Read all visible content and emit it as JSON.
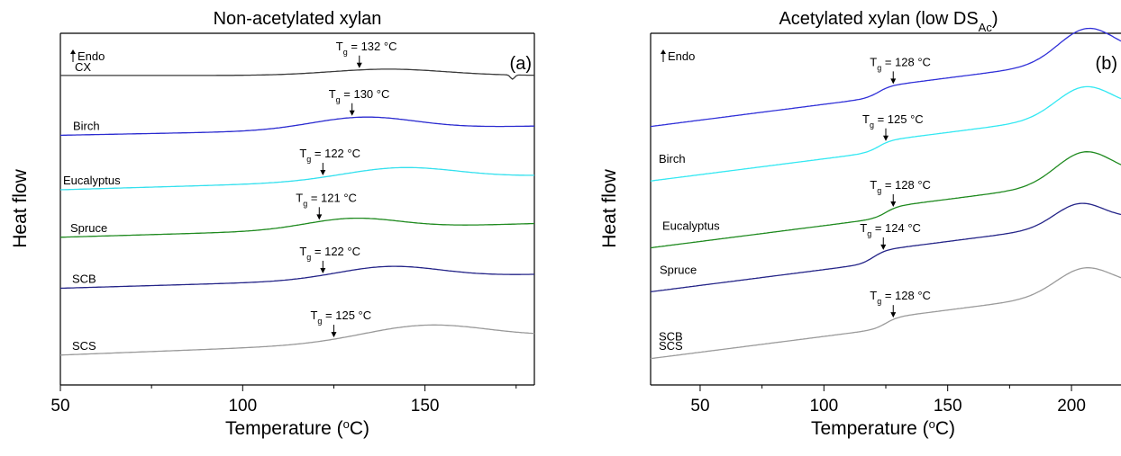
{
  "chart_data": [
    {
      "type": "line",
      "title": "Non-acetylated xylan",
      "panel_label": "(a)",
      "xlabel_main": "Temperature (",
      "xlabel_unit": "o",
      "xlabel_end": "C)",
      "ylabel": "Heat flow",
      "endo_label": "Endo",
      "xlim": [
        50,
        180
      ],
      "xticks": [
        50,
        100,
        150
      ],
      "x_minor_ticks": [
        75,
        125,
        175
      ],
      "series": [
        {
          "name": "CX",
          "color": "#3a3a3a",
          "base": 0.88,
          "slope": 0.0,
          "bump": {
            "center": 140,
            "width": 22,
            "height": 0.018
          },
          "dip": {
            "at": 174,
            "depth": 0.012
          },
          "tg": {
            "value": 132,
            "text_main": "T",
            "text_sub": "g",
            "text_rest": " = 132 °C"
          }
        },
        {
          "name": "Birch",
          "color": "#2b2bd0",
          "base": 0.71,
          "slope": 0.0002,
          "bump": {
            "center": 133,
            "width": 20,
            "height": 0.035
          },
          "tg": {
            "value": 130,
            "text_main": "T",
            "text_sub": "g",
            "text_rest": " = 130 °C"
          }
        },
        {
          "name": "Eucalyptus",
          "color": "#33e0ee",
          "base": 0.555,
          "slope": 0.0003,
          "bump": {
            "center": 143,
            "width": 22,
            "height": 0.035
          },
          "tg": {
            "value": 122,
            "text_main": "T",
            "text_sub": "g",
            "text_rest": " = 122 °C"
          }
        },
        {
          "name": "Spruce",
          "color": "#1f8a1f",
          "base": 0.42,
          "slope": 0.0003,
          "bump": {
            "center": 130,
            "width": 18,
            "height": 0.03
          },
          "tg": {
            "value": 121,
            "text_main": "T",
            "text_sub": "g",
            "text_rest": " = 121 °C"
          }
        },
        {
          "name": "SCB",
          "color": "#242488",
          "base": 0.275,
          "slope": 0.0003,
          "bump": {
            "center": 140,
            "width": 20,
            "height": 0.035
          },
          "tg": {
            "value": 122,
            "text_main": "T",
            "text_sub": "g",
            "text_rest": " = 122 °C"
          }
        },
        {
          "name": "SCS",
          "color": "#999999",
          "base": 0.085,
          "slope": 0.0004,
          "bump": {
            "center": 150,
            "width": 24,
            "height": 0.045
          },
          "tg": {
            "value": 125,
            "text_main": "T",
            "text_sub": "g",
            "text_rest": " = 125 °C"
          }
        }
      ]
    },
    {
      "type": "line",
      "title_main": "Acetylated xylan (low DS",
      "title_sub": "Ac",
      "title_end": ")",
      "panel_label": "(b)",
      "xlabel_main": "Temperature (",
      "xlabel_unit": "o",
      "xlabel_end": "C)",
      "ylabel": "Heat flow",
      "endo_label": "Endo",
      "xlim": [
        30,
        220
      ],
      "xticks": [
        50,
        100,
        150,
        200
      ],
      "x_minor_ticks": [
        75,
        125,
        175
      ],
      "series": [
        {
          "name": "",
          "color": "#3030d8",
          "base": 0.735,
          "slope": 0.0009,
          "bump": {
            "center": 206,
            "width": 16,
            "height": 0.09
          },
          "step": {
            "center": 122,
            "width": 10,
            "height": 0.03
          },
          "tg": {
            "value": 128,
            "text_main": "T",
            "text_sub": "g",
            "text_rest": " = 128 °C"
          }
        },
        {
          "name": "Birch",
          "color": "#33e8f2",
          "base": 0.58,
          "slope": 0.0009,
          "bump": {
            "center": 205,
            "width": 16,
            "height": 0.08
          },
          "step": {
            "center": 122,
            "width": 10,
            "height": 0.03
          },
          "tg": {
            "value": 125,
            "text_main": "T",
            "text_sub": "g",
            "text_rest": " = 125 °C"
          }
        },
        {
          "name": "Eucalyptus",
          "color": "#1f8a1f",
          "base": 0.39,
          "slope": 0.0009,
          "bump": {
            "center": 205,
            "width": 16,
            "height": 0.085
          },
          "step": {
            "center": 125,
            "width": 10,
            "height": 0.03
          },
          "tg": {
            "value": 128,
            "text_main": "T",
            "text_sub": "g",
            "text_rest": " = 128 °C"
          }
        },
        {
          "name": "Spruce",
          "color": "#242488",
          "base": 0.265,
          "slope": 0.0009,
          "bump": {
            "center": 203,
            "width": 14,
            "height": 0.06
          },
          "step": {
            "center": 120,
            "width": 10,
            "height": 0.035
          },
          "tg": {
            "value": 124,
            "text_main": "T",
            "text_sub": "g",
            "text_rest": " = 124 °C"
          }
        },
        {
          "name": "SCB",
          "color": "#9b9b9b",
          "base": 0.075,
          "slope": 0.0009,
          "bump": {
            "center": 205,
            "width": 16,
            "height": 0.07
          },
          "step": {
            "center": 125,
            "width": 10,
            "height": 0.03
          },
          "tg": {
            "value": 128,
            "text_main": "T",
            "text_sub": "g",
            "text_rest": " = 128 °C"
          }
        },
        {
          "name": "SCS",
          "color": "none",
          "base": 0.0,
          "slope": 0.0,
          "hidden": true
        }
      ]
    }
  ]
}
